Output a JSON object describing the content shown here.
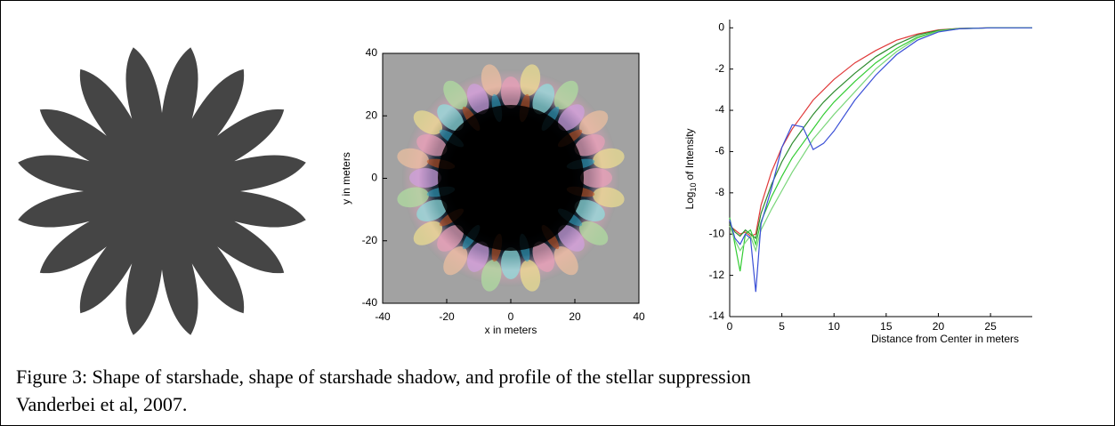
{
  "chart_data": [
    {
      "type": "image",
      "xlabel": "x in meters",
      "ylabel": "y in meters",
      "xlim": [
        -40,
        40
      ],
      "ylim": [
        -40,
        40
      ],
      "xticks": [
        -40,
        -20,
        0,
        20,
        40
      ],
      "yticks": [
        -40,
        -20,
        0,
        20,
        40
      ]
    },
    {
      "type": "line",
      "xlabel": "Distance from Center in meters",
      "ylabel": [
        "Log",
        "10",
        "of Intensity"
      ],
      "xlim": [
        0,
        29
      ],
      "ylim": [
        -14,
        0.4
      ],
      "xticks": [
        0,
        5,
        10,
        15,
        20,
        25
      ],
      "yticks": [
        0,
        -2,
        -4,
        -6,
        -8,
        -10,
        -12,
        -14
      ],
      "x": [
        0,
        0.5,
        1,
        1.5,
        2,
        2.5,
        3,
        4,
        5,
        6,
        7,
        8,
        9,
        10,
        12,
        14,
        16,
        18,
        20,
        22,
        25,
        29
      ],
      "series": [
        {
          "color": "#e03a3a",
          "values": [
            -9.6,
            -9.8,
            -10,
            -9.9,
            -10.1,
            -10,
            -8.6,
            -7,
            -5.8,
            -4.9,
            -4.2,
            -3.5,
            -3,
            -2.5,
            -1.7,
            -1.1,
            -0.6,
            -0.3,
            -0.1,
            -0.03,
            0,
            0
          ]
        },
        {
          "color": "#2e8b2e",
          "values": [
            -9.5,
            -9.9,
            -10.1,
            -9.8,
            -10,
            -10.2,
            -9,
            -7.6,
            -6.5,
            -5.6,
            -4.9,
            -4.2,
            -3.6,
            -3.1,
            -2.2,
            -1.4,
            -0.8,
            -0.35,
            -0.12,
            -0.03,
            0,
            0
          ]
        },
        {
          "color": "#33cc33",
          "values": [
            -9.2,
            -10.5,
            -11.8,
            -10,
            -9.8,
            -10.5,
            -9.4,
            -8.2,
            -7.2,
            -6.3,
            -5.6,
            -4.9,
            -4.2,
            -3.6,
            -2.6,
            -1.7,
            -1,
            -0.45,
            -0.15,
            -0.04,
            0,
            0
          ]
        },
        {
          "color": "#7ad67a",
          "values": [
            -9.6,
            -10.3,
            -10.8,
            -10.4,
            -10.1,
            -10.8,
            -9.8,
            -8.8,
            -7.9,
            -7,
            -6.2,
            -5.4,
            -4.8,
            -4.2,
            -3.1,
            -2,
            -1.15,
            -0.5,
            -0.17,
            -0.05,
            0,
            0
          ]
        },
        {
          "color": "#3a4fd6",
          "values": [
            -9.3,
            -10.2,
            -10.5,
            -10,
            -10.2,
            -12.8,
            -9.5,
            -7.8,
            -5.8,
            -4.7,
            -4.8,
            -5.9,
            -5.6,
            -5,
            -3.5,
            -2.3,
            -1.3,
            -0.6,
            -0.2,
            -0.05,
            0,
            0
          ]
        }
      ]
    }
  ],
  "caption": [
    "Figure 3: Shape of starshade, shape of starshade shadow, and profile of the stellar suppression",
    "Vanderbei et al, 2007."
  ]
}
